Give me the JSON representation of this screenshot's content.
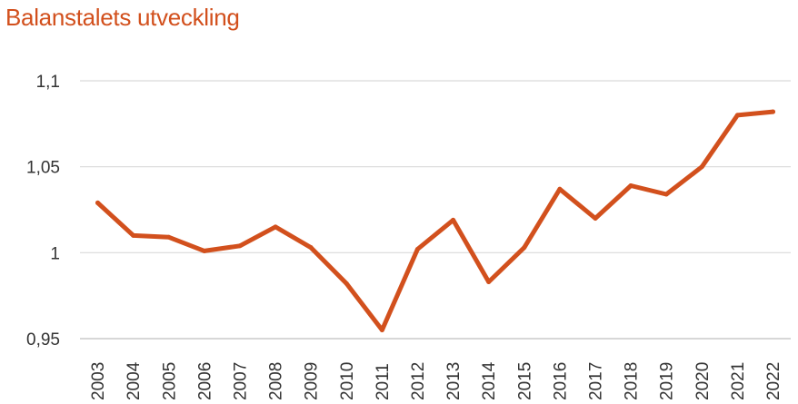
{
  "chart_data": {
    "type": "line",
    "title": "Balanstalets utveckling",
    "xlabel": "",
    "ylabel": "",
    "x": [
      "2003",
      "2004",
      "2005",
      "2006",
      "2007",
      "2008",
      "2009",
      "2010",
      "2011",
      "2012",
      "2013",
      "2014",
      "2015",
      "2016",
      "2017",
      "2018",
      "2019",
      "2020",
      "2021",
      "2022"
    ],
    "series": [
      {
        "values": [
          1.029,
          1.01,
          1.009,
          1.001,
          1.004,
          1.015,
          1.003,
          0.982,
          0.955,
          1.002,
          1.019,
          0.983,
          1.003,
          1.037,
          1.02,
          1.039,
          1.034,
          1.05,
          1.08,
          1.082
        ]
      }
    ],
    "ylim": [
      0.95,
      1.1
    ],
    "yticks": [
      {
        "value": 0.95,
        "label": "0,95"
      },
      {
        "value": 1.0,
        "label": "1"
      },
      {
        "value": 1.05,
        "label": "1,05"
      },
      {
        "value": 1.1,
        "label": "1,1"
      }
    ],
    "grid": true,
    "legend": "none",
    "colors": {
      "line": "#d2501d",
      "title": "#d2501d",
      "grid": "#d9d9d9",
      "axis": "#bfbfbf"
    }
  }
}
